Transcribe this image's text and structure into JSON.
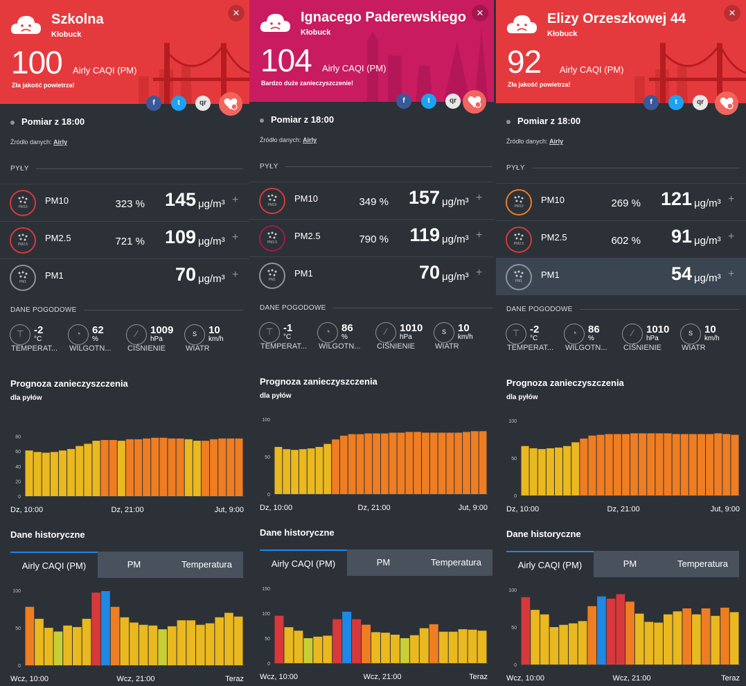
{
  "panels": [
    {
      "header": {
        "street": "Szkolna",
        "city": "Kłobuck",
        "caqi": "100",
        "caqi_label": "Airly CAQI (PM)",
        "quality": "Zła jakość powietrza!"
      },
      "measurement": "Pomiar z 18:00",
      "source_label": "Źródło danych:",
      "source": "Airly",
      "dust_section": "PYŁY",
      "pm": [
        {
          "name": "PM10",
          "pct": "323 %",
          "value": "145",
          "unit": "μg/m³",
          "color": "#d7393b"
        },
        {
          "name": "PM2.5",
          "pct": "721 %",
          "value": "109",
          "unit": "μg/m³",
          "color": "#d7393b"
        },
        {
          "name": "PM1",
          "pct": "",
          "value": "70",
          "unit": "μg/m³",
          "color": "#8d949c"
        }
      ],
      "weather_section": "DANE POGODOWE",
      "weather": [
        {
          "value": "-2",
          "unit": "°C",
          "name": "TEMPERAT..."
        },
        {
          "value": "62",
          "unit": "%",
          "name": "WILGOTN..."
        },
        {
          "value": "1009",
          "unit": "hPa",
          "name": "CIŚNIENIE"
        },
        {
          "value": "10",
          "unit": "km/h",
          "name": "WIATR"
        }
      ],
      "forecast_title": "Prognoza zanieczyszczenia",
      "forecast_sub": "dla pyłów",
      "forecast_x": [
        "Dz, 10:00",
        "Dz, 21:00",
        "Jut, 9:00"
      ],
      "history_title": "Dane historyczne",
      "history_x": [
        "Wcz, 10:00",
        "Wcz, 21:00",
        "Teraz"
      ],
      "tabs": [
        "Airly CAQI (PM)",
        "PM",
        "Temperatura"
      ]
    },
    {
      "header": {
        "street": "Ignacego Paderewskiego",
        "city": "Kłobuck",
        "caqi": "104",
        "caqi_label": "Airly CAQI (PM)",
        "quality": "Bardzo duże zanieczyszczenie!"
      },
      "measurement": "Pomiar z 18:00",
      "source_label": "Źródło danych:",
      "source": "Airly",
      "dust_section": "PYŁY",
      "pm": [
        {
          "name": "PM10",
          "pct": "349 %",
          "value": "157",
          "unit": "μg/m³",
          "color": "#d7393b"
        },
        {
          "name": "PM2.5",
          "pct": "790 %",
          "value": "119",
          "unit": "μg/m³",
          "color": "#a11a4f"
        },
        {
          "name": "PM1",
          "pct": "",
          "value": "70",
          "unit": "μg/m³",
          "color": "#8d949c"
        }
      ],
      "weather_section": "DANE POGODOWE",
      "weather": [
        {
          "value": "-1",
          "unit": "°C",
          "name": "TEMPERAT..."
        },
        {
          "value": "86",
          "unit": "%",
          "name": "WILGOTN..."
        },
        {
          "value": "1010",
          "unit": "hPa",
          "name": "CIŚNIENIE"
        },
        {
          "value": "10",
          "unit": "km/h",
          "name": "WIATR"
        }
      ],
      "forecast_title": "Prognoza zanieczyszczenia",
      "forecast_sub": "dla pyłów",
      "forecast_x": [
        "Dz, 10:00",
        "Dz, 21:00",
        "Jut, 9:00"
      ],
      "history_title": "Dane historyczne",
      "history_x": [
        "Wcz, 10:00",
        "Wcz, 21:00",
        "Teraz"
      ],
      "tabs": [
        "Airly CAQI (PM)",
        "PM",
        "Temperatura"
      ]
    },
    {
      "header": {
        "street": "Elizy Orzeszkowej 44",
        "city": "Kłobuck",
        "caqi": "92",
        "caqi_label": "Airly CAQI (PM)",
        "quality": "Zła jakość powietrza!"
      },
      "measurement": "Pomiar z 18:00",
      "source_label": "Źródło danych:",
      "source": "Airly",
      "dust_section": "PYŁY",
      "pm": [
        {
          "name": "PM10",
          "pct": "269 %",
          "value": "121",
          "unit": "μg/m³",
          "color": "#ef7d22"
        },
        {
          "name": "PM2.5",
          "pct": "602 %",
          "value": "91",
          "unit": "μg/m³",
          "color": "#d7393b"
        },
        {
          "name": "PM1",
          "pct": "",
          "value": "54",
          "unit": "μg/m³",
          "color": "#8d949c"
        }
      ],
      "weather_section": "DANE POGODOWE",
      "weather": [
        {
          "value": "-2",
          "unit": "°C",
          "name": "TEMPERAT..."
        },
        {
          "value": "86",
          "unit": "%",
          "name": "WILGOTN..."
        },
        {
          "value": "1010",
          "unit": "hPa",
          "name": "CIŚNIENIE"
        },
        {
          "value": "10",
          "unit": "km/h",
          "name": "WIATR"
        }
      ],
      "forecast_title": "Prognoza zanieczyszczenia",
      "forecast_sub": "dla pyłów",
      "forecast_x": [
        "Dz, 10:00",
        "Dz, 21:00",
        "Jut, 9:00"
      ],
      "history_title": "Dane historyczne",
      "history_x": [
        "Wcz, 10:00",
        "Wcz, 21:00",
        "Teraz"
      ],
      "tabs": [
        "Airly CAQI (PM)",
        "PM",
        "Temperatura"
      ]
    }
  ],
  "colors": {
    "red": "#d7393b",
    "orange": "#ef7d22",
    "yellow": "#eab81f",
    "lime": "#c7cf35",
    "blue": "#1e88e5",
    "magenta": "#a11a4f"
  },
  "social": {
    "facebook": "f",
    "twitter": "t",
    "qr": "qr"
  },
  "chart_data": [
    {
      "type": "bar",
      "name": "forecast-szkolna",
      "yticks": [
        0,
        20,
        40,
        60,
        80
      ],
      "ylim": [
        0,
        100
      ],
      "values": [
        61,
        59,
        58,
        59,
        61,
        63,
        67,
        70,
        74,
        75,
        75,
        74,
        76,
        76,
        77,
        78,
        78,
        77,
        77,
        76,
        74,
        74,
        76,
        77,
        77,
        77
      ],
      "colors": [
        "yellow",
        "yellow",
        "yellow",
        "yellow",
        "yellow",
        "yellow",
        "yellow",
        "yellow",
        "yellow",
        "orange",
        "orange",
        "yellow",
        "orange",
        "orange",
        "orange",
        "orange",
        "orange",
        "orange",
        "orange",
        "yellow",
        "yellow",
        "orange",
        "orange",
        "orange",
        "orange",
        "orange"
      ]
    },
    {
      "type": "bar",
      "name": "history-szkolna",
      "yticks": [
        0,
        50,
        100
      ],
      "ylim": [
        0,
        100
      ],
      "values": [
        78,
        62,
        50,
        45,
        53,
        51,
        62,
        97,
        99,
        78,
        64,
        57,
        54,
        53,
        48,
        52,
        60,
        60,
        54,
        56,
        64,
        70,
        65
      ],
      "colors": [
        "orange",
        "yellow",
        "yellow",
        "lime",
        "yellow",
        "yellow",
        "yellow",
        "red",
        "blue",
        "orange",
        "yellow",
        "yellow",
        "yellow",
        "yellow",
        "lime",
        "yellow",
        "yellow",
        "yellow",
        "yellow",
        "yellow",
        "yellow",
        "yellow",
        "yellow"
      ]
    },
    {
      "type": "bar",
      "name": "forecast-paderewskiego",
      "yticks": [
        0,
        50,
        100
      ],
      "ylim": [
        0,
        100
      ],
      "values": [
        63,
        60,
        59,
        60,
        61,
        63,
        67,
        73,
        78,
        80,
        80,
        81,
        81,
        81,
        82,
        82,
        83,
        83,
        82,
        82,
        82,
        82,
        82,
        83,
        84,
        84
      ],
      "colors": [
        "yellow",
        "yellow",
        "yellow",
        "yellow",
        "yellow",
        "yellow",
        "yellow",
        "orange",
        "orange",
        "orange",
        "orange",
        "orange",
        "orange",
        "orange",
        "orange",
        "orange",
        "orange",
        "orange",
        "orange",
        "orange",
        "orange",
        "orange",
        "orange",
        "orange",
        "orange",
        "orange"
      ]
    },
    {
      "type": "bar",
      "name": "history-paderewskiego",
      "yticks": [
        0,
        50,
        100,
        150
      ],
      "ylim": [
        0,
        150
      ],
      "values": [
        95,
        72,
        65,
        50,
        53,
        55,
        88,
        103,
        88,
        77,
        62,
        61,
        57,
        50,
        56,
        70,
        78,
        63,
        63,
        68,
        67,
        65
      ],
      "colors": [
        "red",
        "yellow",
        "yellow",
        "lime",
        "yellow",
        "yellow",
        "red",
        "blue",
        "red",
        "orange",
        "yellow",
        "yellow",
        "yellow",
        "lime",
        "yellow",
        "yellow",
        "orange",
        "yellow",
        "yellow",
        "yellow",
        "yellow",
        "yellow"
      ]
    },
    {
      "type": "bar",
      "name": "forecast-orzeszkowej",
      "yticks": [
        0,
        50,
        100
      ],
      "ylim": [
        0,
        100
      ],
      "values": [
        66,
        63,
        62,
        63,
        64,
        66,
        71,
        76,
        80,
        81,
        82,
        82,
        82,
        83,
        83,
        83,
        83,
        83,
        82,
        82,
        82,
        82,
        82,
        83,
        82,
        81
      ],
      "colors": [
        "yellow",
        "yellow",
        "yellow",
        "yellow",
        "yellow",
        "yellow",
        "yellow",
        "orange",
        "orange",
        "orange",
        "orange",
        "orange",
        "orange",
        "orange",
        "orange",
        "orange",
        "orange",
        "orange",
        "orange",
        "orange",
        "orange",
        "orange",
        "orange",
        "orange",
        "orange",
        "orange"
      ]
    },
    {
      "type": "bar",
      "name": "history-orzeszkowej",
      "yticks": [
        0,
        50,
        100
      ],
      "ylim": [
        0,
        100
      ],
      "values": [
        90,
        73,
        67,
        50,
        53,
        55,
        58,
        78,
        91,
        88,
        94,
        84,
        68,
        57,
        56,
        67,
        71,
        75,
        67,
        75,
        65,
        76,
        70
      ],
      "colors": [
        "red",
        "yellow",
        "yellow",
        "yellow",
        "yellow",
        "yellow",
        "yellow",
        "orange",
        "blue",
        "red",
        "red",
        "orange",
        "yellow",
        "yellow",
        "yellow",
        "yellow",
        "yellow",
        "orange",
        "yellow",
        "orange",
        "yellow",
        "orange",
        "yellow"
      ]
    }
  ]
}
